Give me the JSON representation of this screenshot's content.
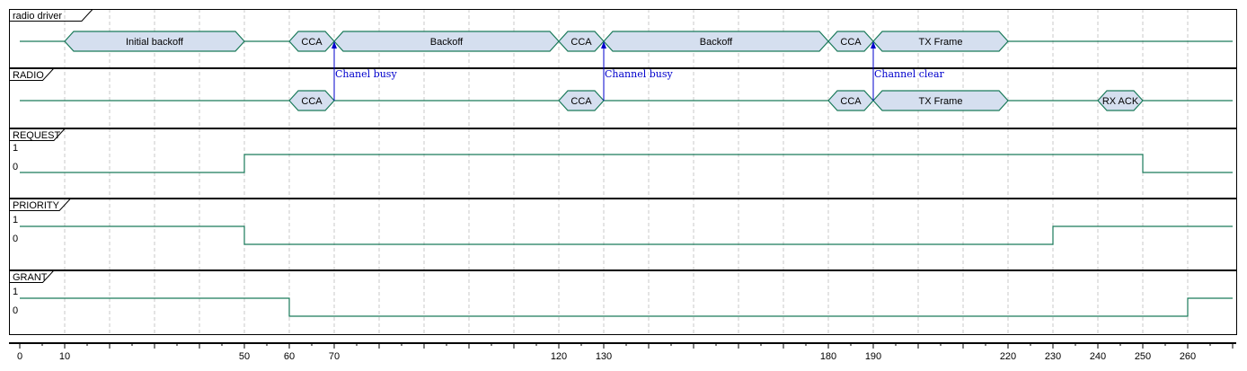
{
  "chart_data": {
    "type": "timing-diagram",
    "time_range": [
      0,
      270
    ],
    "ticks_major": [
      0,
      10,
      50,
      60,
      70,
      120,
      130,
      180,
      190,
      220,
      230,
      240,
      250,
      260
    ],
    "ticks_minor_step": 5,
    "grid_step": 10,
    "signals": [
      {
        "name": "radio driver",
        "kind": "concise",
        "blocks": [
          {
            "start": 10,
            "end": 50,
            "label": "Initial backoff"
          },
          {
            "start": 60,
            "end": 70,
            "label": "CCA"
          },
          {
            "start": 70,
            "end": 120,
            "label": "Backoff"
          },
          {
            "start": 120,
            "end": 130,
            "label": "CCA"
          },
          {
            "start": 130,
            "end": 180,
            "label": "Backoff"
          },
          {
            "start": 180,
            "end": 190,
            "label": "CCA"
          },
          {
            "start": 190,
            "end": 220,
            "label": "TX Frame"
          }
        ]
      },
      {
        "name": "RADIO",
        "kind": "concise",
        "blocks": [
          {
            "start": 60,
            "end": 70,
            "label": "CCA"
          },
          {
            "start": 120,
            "end": 130,
            "label": "CCA"
          },
          {
            "start": 180,
            "end": 190,
            "label": "CCA"
          },
          {
            "start": 190,
            "end": 220,
            "label": "TX Frame"
          },
          {
            "start": 240,
            "end": 250,
            "label": "RX ACK"
          }
        ]
      },
      {
        "name": "REQUEST",
        "kind": "binary",
        "level_labels": [
          "1",
          "0"
        ],
        "initial": 0,
        "transitions": [
          {
            "t": 50,
            "v": 1
          },
          {
            "t": 250,
            "v": 0
          }
        ]
      },
      {
        "name": "PRIORITY",
        "kind": "binary",
        "level_labels": [
          "1",
          "0"
        ],
        "initial": 1,
        "transitions": [
          {
            "t": 50,
            "v": 0
          },
          {
            "t": 230,
            "v": 1
          }
        ]
      },
      {
        "name": "GRANT",
        "kind": "binary",
        "level_labels": [
          "1",
          "0"
        ],
        "initial": 1,
        "transitions": [
          {
            "t": 60,
            "v": 0
          },
          {
            "t": 260,
            "v": 1
          }
        ]
      }
    ],
    "messages": [
      {
        "t": 70,
        "from": "RADIO",
        "to": "radio driver",
        "label": "Chanel busy"
      },
      {
        "t": 130,
        "from": "RADIO",
        "to": "radio driver",
        "label": "Channel busy"
      },
      {
        "t": 190,
        "from": "RADIO",
        "to": "radio driver",
        "label": "Channel clear"
      }
    ],
    "colors": {
      "signal": "#1a7a5a",
      "block_fill": "#d5dfef",
      "message": "#0000cc",
      "grid": "#c8c8c8",
      "frame": "#000000"
    }
  }
}
